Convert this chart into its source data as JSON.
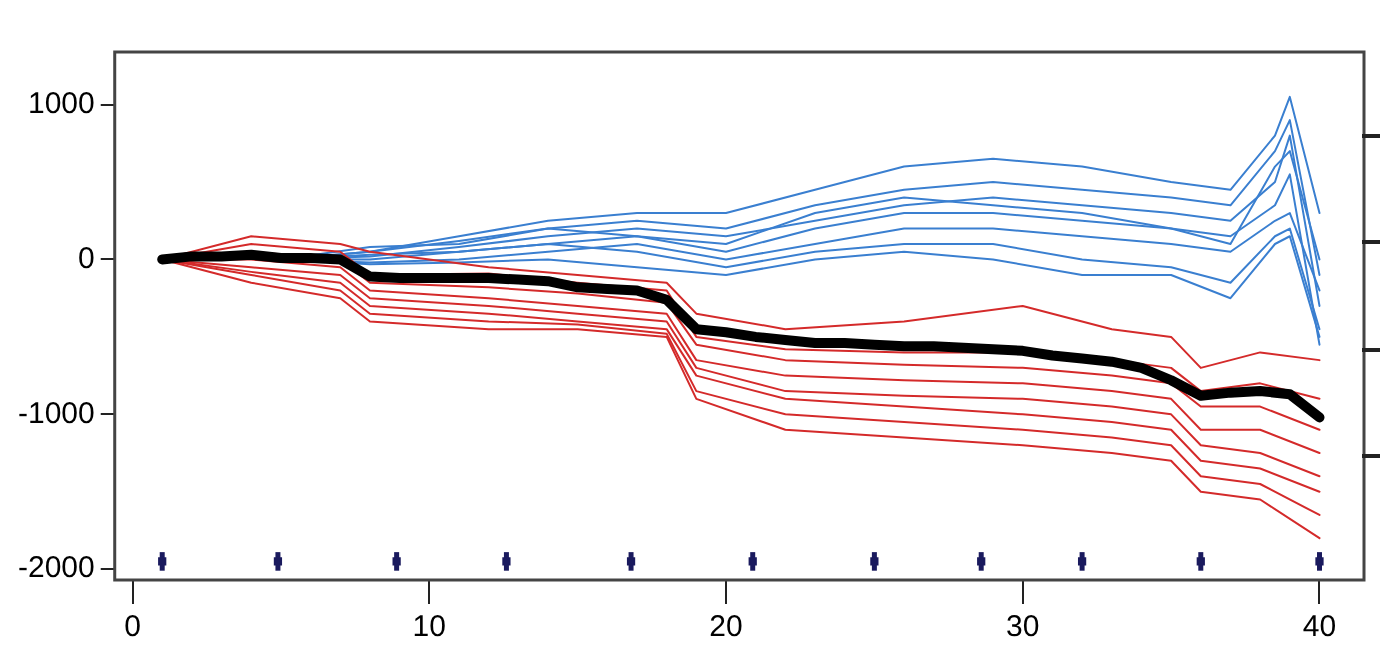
{
  "chart_data": {
    "type": "line",
    "xlim": [
      -0.6,
      41.5
    ],
    "xticks": [
      0,
      10,
      20,
      30,
      40
    ],
    "ylim": [
      -2070,
      1340
    ],
    "yticks": [
      -2000,
      -1000,
      0,
      1000
    ],
    "grid": false,
    "legend": false,
    "marker": "none",
    "line_style": "solid",
    "series": [
      {
        "color": "#d42a2a",
        "x": [
          1,
          4,
          7,
          8,
          12,
          15,
          18,
          19,
          22,
          26,
          30,
          33,
          35,
          36,
          38,
          40
        ],
        "values": [
          0,
          150,
          100,
          50,
          -50,
          -100,
          -150,
          -350,
          -450,
          -400,
          -300,
          -450,
          -500,
          -700,
          -600,
          -650
        ]
      },
      {
        "color": "#d42a2a",
        "x": [
          1,
          4,
          7,
          8,
          12,
          15,
          18,
          19,
          22,
          26,
          30,
          33,
          35,
          36,
          38,
          40
        ],
        "values": [
          0,
          100,
          50,
          -100,
          -90,
          -150,
          -200,
          -500,
          -580,
          -600,
          -600,
          -650,
          -700,
          -850,
          -800,
          -900
        ]
      },
      {
        "color": "#d42a2a",
        "x": [
          1,
          4,
          7,
          8,
          12,
          15,
          18,
          19,
          22,
          26,
          30,
          33,
          35,
          36,
          38,
          40
        ],
        "values": [
          0,
          50,
          0,
          -150,
          -180,
          -220,
          -280,
          -550,
          -650,
          -680,
          -700,
          -750,
          -800,
          -950,
          -950,
          -1100
        ]
      },
      {
        "color": "#d42a2a",
        "x": [
          1,
          4,
          7,
          8,
          12,
          15,
          18,
          19,
          22,
          26,
          30,
          33,
          35,
          36,
          38,
          40
        ],
        "values": [
          0,
          0,
          -50,
          -200,
          -250,
          -300,
          -350,
          -650,
          -750,
          -780,
          -800,
          -850,
          -900,
          -1100,
          -1100,
          -1250
        ]
      },
      {
        "color": "#d42a2a",
        "x": [
          1,
          4,
          7,
          8,
          12,
          15,
          18,
          19,
          22,
          26,
          30,
          33,
          35,
          36,
          38,
          40
        ],
        "values": [
          0,
          -50,
          -100,
          -250,
          -300,
          -350,
          -400,
          -700,
          -850,
          -880,
          -900,
          -950,
          -1000,
          -1200,
          -1250,
          -1400
        ]
      },
      {
        "color": "#d42a2a",
        "x": [
          1,
          4,
          7,
          8,
          12,
          15,
          18,
          19,
          22,
          26,
          30,
          33,
          35,
          36,
          38,
          40
        ],
        "values": [
          0,
          -80,
          -150,
          -300,
          -350,
          -400,
          -450,
          -750,
          -900,
          -950,
          -1000,
          -1050,
          -1100,
          -1300,
          -1350,
          -1500
        ]
      },
      {
        "color": "#d42a2a",
        "x": [
          1,
          4,
          7,
          8,
          12,
          15,
          18,
          19,
          22,
          26,
          30,
          33,
          35,
          36,
          38,
          40
        ],
        "values": [
          0,
          -100,
          -200,
          -350,
          -400,
          -420,
          -480,
          -850,
          -1000,
          -1050,
          -1100,
          -1150,
          -1200,
          -1400,
          -1450,
          -1650
        ]
      },
      {
        "color": "#d42a2a",
        "x": [
          1,
          4,
          7,
          8,
          12,
          15,
          18,
          19,
          22,
          26,
          30,
          33,
          35,
          36,
          38,
          40
        ],
        "values": [
          0,
          -150,
          -250,
          -400,
          -450,
          -450,
          -500,
          -900,
          -1100,
          -1150,
          -1200,
          -1250,
          -1300,
          -1500,
          -1550,
          -1800
        ]
      },
      {
        "color": "#3a7fd0",
        "x": [
          5,
          8,
          11,
          14,
          17,
          20,
          23,
          26,
          29,
          32,
          35,
          37,
          38.5,
          39,
          40
        ],
        "values": [
          0,
          50,
          150,
          250,
          300,
          300,
          450,
          600,
          650,
          600,
          500,
          450,
          800,
          1050,
          300
        ]
      },
      {
        "color": "#3a7fd0",
        "x": [
          5,
          8,
          11,
          14,
          17,
          20,
          23,
          26,
          29,
          32,
          35,
          37,
          38.5,
          39,
          40
        ],
        "values": [
          0,
          80,
          100,
          200,
          250,
          200,
          350,
          450,
          500,
          450,
          400,
          350,
          700,
          900,
          -100
        ]
      },
      {
        "color": "#3a7fd0",
        "x": [
          5,
          8,
          11,
          14,
          17,
          20,
          23,
          26,
          29,
          32,
          35,
          37,
          38.5,
          39,
          40
        ],
        "values": [
          0,
          20,
          80,
          150,
          200,
          150,
          250,
          350,
          400,
          350,
          300,
          250,
          500,
          800,
          -300
        ]
      },
      {
        "color": "#3a7fd0",
        "x": [
          5,
          8,
          11,
          14,
          17,
          20,
          23,
          26,
          29,
          32,
          35,
          37,
          38.5,
          39,
          40
        ],
        "values": [
          0,
          0,
          50,
          100,
          150,
          50,
          200,
          300,
          300,
          250,
          200,
          150,
          350,
          550,
          -550
        ]
      },
      {
        "color": "#3a7fd0",
        "x": [
          5,
          8,
          11,
          14,
          17,
          20,
          23,
          26,
          29,
          32,
          35,
          37,
          38.5,
          39,
          40
        ],
        "values": [
          0,
          -20,
          0,
          50,
          100,
          0,
          100,
          200,
          200,
          150,
          100,
          50,
          250,
          300,
          -200
        ]
      },
      {
        "color": "#3a7fd0",
        "x": [
          5,
          8,
          11,
          14,
          17,
          20,
          23,
          26,
          29,
          32,
          35,
          37,
          38.5,
          39,
          40
        ],
        "values": [
          0,
          30,
          50,
          100,
          50,
          -50,
          50,
          100,
          100,
          0,
          -50,
          -150,
          150,
          200,
          -450
        ]
      },
      {
        "color": "#3a7fd0",
        "x": [
          5,
          8,
          11,
          14,
          17,
          20,
          23,
          26,
          29,
          32,
          35,
          37,
          38.5,
          39,
          40
        ],
        "values": [
          0,
          -30,
          -20,
          0,
          -50,
          -100,
          0,
          50,
          0,
          -100,
          -100,
          -250,
          100,
          150,
          -500
        ]
      },
      {
        "color": "#3a7fd0",
        "x": [
          5,
          8,
          11,
          14,
          17,
          20,
          23,
          26,
          29,
          32,
          35,
          37,
          38.5,
          39,
          40
        ],
        "values": [
          0,
          50,
          120,
          200,
          150,
          100,
          300,
          400,
          350,
          300,
          200,
          100,
          600,
          700,
          0
        ]
      },
      {
        "color": "#000000",
        "x": [
          1,
          2,
          3,
          4,
          5,
          6,
          7,
          8,
          9,
          10,
          11,
          12,
          13,
          14,
          15,
          16,
          17,
          18,
          19,
          20,
          21,
          22,
          23,
          24,
          25,
          26,
          27,
          28,
          29,
          30,
          31,
          32,
          33,
          34,
          35,
          36,
          37,
          38,
          39,
          40
        ],
        "values": [
          0,
          20,
          20,
          30,
          10,
          10,
          0,
          -110,
          -120,
          -120,
          -120,
          -120,
          -130,
          -140,
          -180,
          -190,
          -200,
          -260,
          -450,
          -470,
          -500,
          -520,
          -540,
          -540,
          -550,
          -560,
          -560,
          -570,
          -580,
          -590,
          -620,
          -640,
          -660,
          -700,
          -780,
          -880,
          -860,
          -850,
          -870,
          -1020
        ]
      },
      {
        "type": "scatter",
        "marker": "square",
        "color": "#1a1a5e",
        "x": [
          1,
          4.9,
          8.9,
          12.6,
          16.8,
          20.9,
          25,
          28.6,
          32,
          36,
          40
        ],
        "values": [
          -1950,
          -1950,
          -1950,
          -1950,
          -1950,
          -1950,
          -1950,
          -1950,
          -1950,
          -1950,
          -1950
        ],
        "errors": [
          60,
          60,
          60,
          60,
          60,
          60,
          60,
          60,
          60,
          60,
          60
        ]
      }
    ]
  }
}
